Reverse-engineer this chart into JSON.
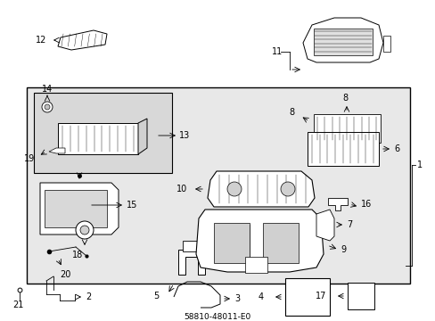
{
  "title": "58810-48011-E0",
  "bg_color": "#ffffff",
  "diagram_bg": "#e8e8e8",
  "fig_width": 4.89,
  "fig_height": 3.6,
  "dpi": 100
}
